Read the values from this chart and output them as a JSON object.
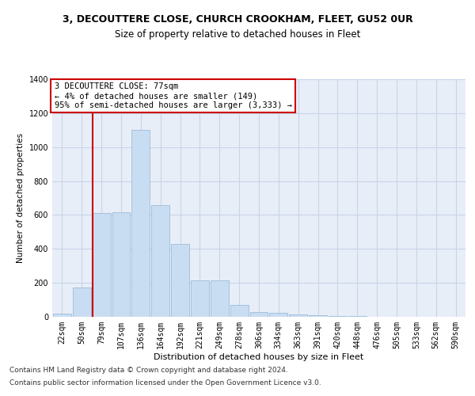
{
  "title1": "3, DECOUTTERE CLOSE, CHURCH CROOKHAM, FLEET, GU52 0UR",
  "title2": "Size of property relative to detached houses in Fleet",
  "xlabel": "Distribution of detached houses by size in Fleet",
  "ylabel": "Number of detached properties",
  "categories": [
    "22sqm",
    "50sqm",
    "79sqm",
    "107sqm",
    "136sqm",
    "164sqm",
    "192sqm",
    "221sqm",
    "249sqm",
    "278sqm",
    "306sqm",
    "334sqm",
    "363sqm",
    "391sqm",
    "420sqm",
    "448sqm",
    "476sqm",
    "505sqm",
    "533sqm",
    "562sqm",
    "590sqm"
  ],
  "values": [
    20,
    175,
    610,
    615,
    1100,
    660,
    430,
    215,
    215,
    70,
    30,
    25,
    15,
    10,
    5,
    5,
    2,
    1,
    1,
    0,
    1
  ],
  "bar_color": "#c9ddf2",
  "bar_edge_color": "#9abdd8",
  "annotation_text": "3 DECOUTTERE CLOSE: 77sqm\n← 4% of detached houses are smaller (149)\n95% of semi-detached houses are larger (3,333) →",
  "annotation_box_color": "#ffffff",
  "annotation_border_color": "#cc0000",
  "red_line_color": "#cc0000",
  "red_line_x": 1.57,
  "ylim": [
    0,
    1400
  ],
  "yticks": [
    0,
    200,
    400,
    600,
    800,
    1000,
    1200,
    1400
  ],
  "grid_color": "#c8d4e8",
  "plot_bg_color": "#e8eef8",
  "footer1": "Contains HM Land Registry data © Crown copyright and database right 2024.",
  "footer2": "Contains public sector information licensed under the Open Government Licence v3.0.",
  "title1_fontsize": 9,
  "title2_fontsize": 8.5,
  "xlabel_fontsize": 8,
  "ylabel_fontsize": 7.5,
  "tick_fontsize": 7,
  "annotation_fontsize": 7.5,
  "footer_fontsize": 6.5
}
